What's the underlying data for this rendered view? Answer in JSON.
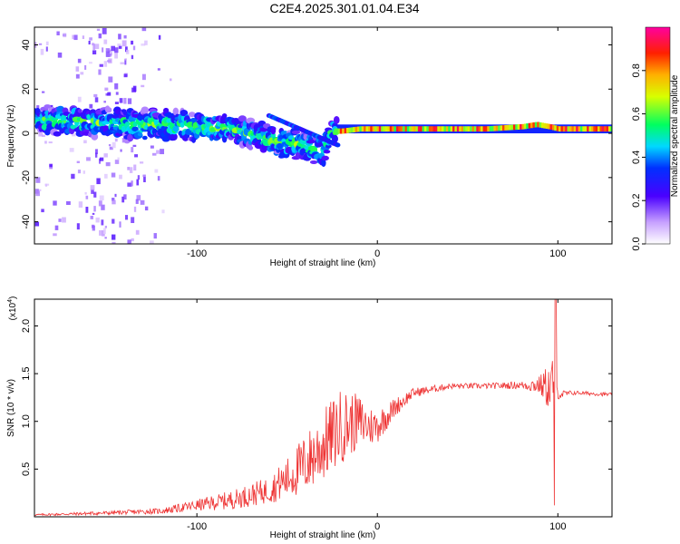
{
  "title": "C2E4.2025.301.01.04.E34",
  "chart_data": [
    {
      "type": "heatmap",
      "xlabel": "Height of straight line (km)",
      "ylabel": "Frequency (Hz)",
      "xlim": [
        -190,
        130
      ],
      "ylim": [
        -50,
        48
      ],
      "xticks": [
        -100,
        0,
        100
      ],
      "yticks": [
        -40,
        -20,
        0,
        20,
        40
      ],
      "xtick_labels": [
        "-100",
        "0",
        "100"
      ],
      "ytick_labels": [
        "-40",
        "-20",
        "0",
        "20",
        "40"
      ],
      "ridge": {
        "x": [
          -185,
          -160,
          -140,
          -120,
          -100,
          -80,
          -60,
          -50,
          -40,
          -30,
          -25,
          -20,
          -10,
          0,
          20,
          40,
          60,
          80,
          88,
          95,
          100,
          130
        ],
        "y": [
          6,
          5,
          4,
          4,
          3,
          2,
          -3,
          -4,
          -6,
          -8,
          1,
          1,
          2,
          2,
          2,
          2,
          2,
          3,
          4,
          3,
          2,
          2
        ]
      },
      "colorbar": {
        "label": "Normalized spectral amplitude",
        "range": [
          0,
          1
        ],
        "ticks": [
          0.0,
          0.2,
          0.4,
          0.6,
          0.8
        ],
        "tick_labels": [
          "0.0",
          "0.2",
          "0.4",
          "0.6",
          "0.8"
        ]
      }
    },
    {
      "type": "line",
      "xlabel": "Height of straight line (km)",
      "ylabel": "SNR (10 * v/v)",
      "ylabel_multiplier": "(x10",
      "ylabel_multiplier_exp": "4",
      "ylabel_multiplier_close": ")",
      "xlim": [
        -190,
        130
      ],
      "ylim": [
        0,
        2.28
      ],
      "xticks": [
        -100,
        0,
        100
      ],
      "yticks": [
        0.5,
        1.0,
        1.5,
        2.0
      ],
      "xtick_labels": [
        "-100",
        "0",
        "100"
      ],
      "ytick_labels": [
        "0.5",
        "1.0",
        "1.5",
        "2.0"
      ],
      "series": [
        {
          "name": "SNR",
          "color": "#ee3333",
          "envelope_x": [
            -190,
            -150,
            -120,
            -100,
            -80,
            -60,
            -50,
            -40,
            -30,
            -20,
            -10,
            -5,
            0,
            10,
            20,
            40,
            60,
            80,
            90,
            95,
            98,
            100,
            110,
            130
          ],
          "envelope_y": [
            0.02,
            0.04,
            0.06,
            0.12,
            0.18,
            0.28,
            0.4,
            0.55,
            0.75,
            0.95,
            1.0,
            0.95,
            0.95,
            1.15,
            1.3,
            1.37,
            1.37,
            1.38,
            1.38,
            1.36,
            1.3,
            1.28,
            1.3,
            1.28
          ],
          "amplitude_y": [
            0.01,
            0.02,
            0.03,
            0.06,
            0.1,
            0.14,
            0.22,
            0.32,
            0.38,
            0.4,
            0.28,
            0.22,
            0.18,
            0.1,
            0.05,
            0.03,
            0.03,
            0.04,
            0.1,
            0.25,
            0.5,
            0.05,
            0.02,
            0.02
          ]
        }
      ]
    }
  ]
}
